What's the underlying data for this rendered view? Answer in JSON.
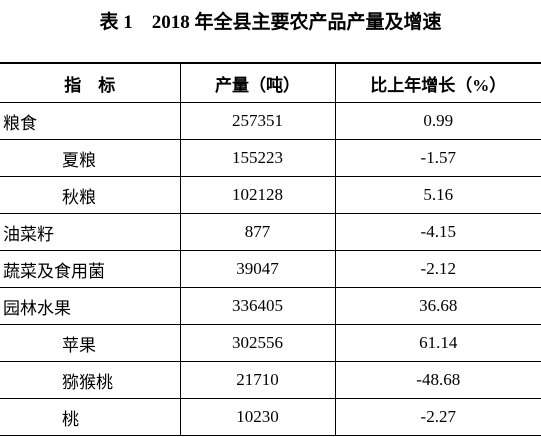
{
  "header": {
    "title": "表 1　2018 年全县主要农产品产量及增速"
  },
  "table": {
    "columns": [
      "指　标",
      "产量（吨）",
      "比上年增长（%）"
    ],
    "rows": [
      {
        "cells": [
          "粮食",
          "257351",
          "0.99"
        ],
        "children": [
          [
            "夏粮",
            "155223",
            "-1.57"
          ],
          [
            "秋粮",
            "102128",
            "5.16"
          ]
        ]
      },
      {
        "cells": [
          "油菜籽",
          "877",
          "-4.15"
        ],
        "children": []
      },
      {
        "cells": [
          "蔬菜及食用菌",
          "39047",
          "-2.12"
        ],
        "children": []
      },
      {
        "cells": [
          "园林水果",
          "336405",
          "36.68"
        ],
        "children": [
          [
            "苹果",
            "302556",
            "61.14"
          ],
          [
            "猕猴桃",
            "21710",
            "-48.68"
          ],
          [
            "桃",
            "10230",
            "-2.27"
          ]
        ]
      }
    ]
  }
}
